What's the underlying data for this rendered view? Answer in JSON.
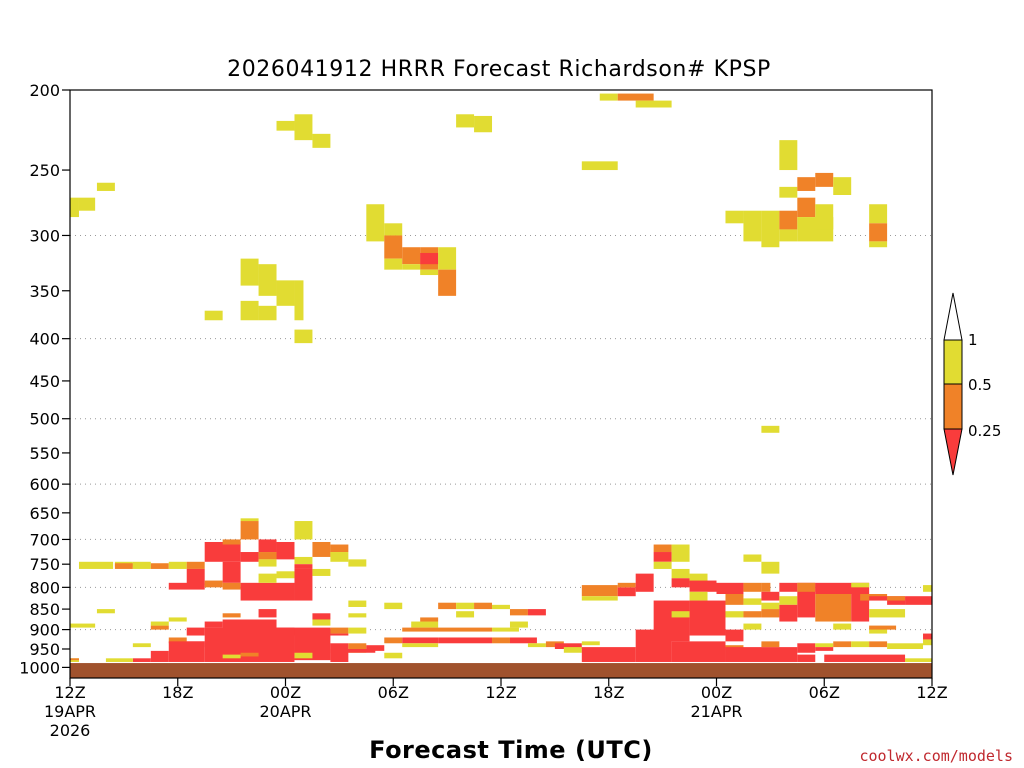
{
  "chart_data": {
    "type": "heatmap",
    "title": "2026041912 HRRR Forecast Richardson# KPSP",
    "xlabel": "Forecast Time (UTC)",
    "credit": "coolwx.com/models",
    "x_unit": "forecast hours from 12Z 19APR 2026",
    "xlim": [
      0,
      48
    ],
    "y_unit": "hPa",
    "ylim": [
      1000,
      200
    ],
    "y_scale": "log-pressure",
    "y_ticks": [
      200,
      250,
      300,
      350,
      400,
      450,
      500,
      550,
      600,
      650,
      700,
      750,
      800,
      850,
      900,
      950,
      1000
    ],
    "y_tick_labels": [
      "200",
      "250",
      "300",
      "350",
      "400",
      "450",
      "500",
      "550",
      "600",
      "650",
      "700",
      "750",
      "800",
      "850",
      "900",
      "950",
      "1000"
    ],
    "y_gridlines": [
      300,
      400,
      500,
      600,
      700,
      800,
      900
    ],
    "x_ticks": [
      {
        "hour": 0,
        "lines": [
          "12Z",
          "19APR",
          "2026"
        ]
      },
      {
        "hour": 6,
        "lines": [
          "18Z"
        ]
      },
      {
        "hour": 12,
        "lines": [
          "00Z",
          "20APR"
        ]
      },
      {
        "hour": 18,
        "lines": [
          "06Z"
        ]
      },
      {
        "hour": 24,
        "lines": [
          "12Z"
        ]
      },
      {
        "hour": 30,
        "lines": [
          "18Z"
        ]
      },
      {
        "hour": 36,
        "lines": [
          "00Z",
          "21APR"
        ]
      },
      {
        "hour": 42,
        "lines": [
          "06Z"
        ]
      },
      {
        "hour": 48,
        "lines": [
          "12Z"
        ]
      }
    ],
    "legend": {
      "placement": "right",
      "bins": [
        {
          "range": "< 0.25",
          "color": "#f93c3c"
        },
        {
          "range": "0.25 - 0.5",
          "color": "#f08228"
        },
        {
          "range": "0.5 - 1",
          "color": "#e1dc32"
        },
        {
          "range": "> 1",
          "color": "#ffffff"
        }
      ],
      "labels": [
        "1",
        "0.5",
        "0.25"
      ]
    },
    "ground_color": "#a0522d",
    "ground_top_hpa": 988,
    "colors": {
      "R": "#f93c3c",
      "O": "#f08228",
      "Y": "#e1dc32"
    },
    "cells": [
      [
        "Y",
        0,
        0.5,
        285,
        270
      ],
      [
        "Y",
        0.5,
        1.4,
        280,
        270
      ],
      [
        "Y",
        1.5,
        2.5,
        265,
        259
      ],
      [
        "Y",
        11.5,
        12.5,
        224,
        218
      ],
      [
        "Y",
        12.5,
        13.5,
        230,
        214
      ],
      [
        "Y",
        13.5,
        14.5,
        235,
        226
      ],
      [
        "Y",
        21.5,
        22.5,
        222,
        214
      ],
      [
        "Y",
        22.5,
        23.5,
        225,
        215
      ],
      [
        "Y",
        29.5,
        30.5,
        206,
        202
      ],
      [
        "O",
        30.5,
        32.5,
        206,
        202
      ],
      [
        "Y",
        31.5,
        33.5,
        210,
        206
      ],
      [
        "Y",
        28.5,
        30.5,
        250,
        244
      ],
      [
        "Y",
        39.5,
        40.5,
        250,
        230
      ],
      [
        "Y",
        39.5,
        40.5,
        270,
        262
      ],
      [
        "O",
        40.5,
        41.5,
        265,
        255
      ],
      [
        "O",
        41.5,
        42.5,
        262,
        252
      ],
      [
        "Y",
        42.5,
        43.5,
        268,
        255
      ],
      [
        "Y",
        36.5,
        37.5,
        290,
        280
      ],
      [
        "Y",
        37.5,
        38.5,
        305,
        280
      ],
      [
        "Y",
        38.5,
        39.5,
        310,
        280
      ],
      [
        "O",
        39.5,
        40.5,
        295,
        280
      ],
      [
        "Y",
        39.5,
        40.5,
        305,
        295
      ],
      [
        "O",
        40.5,
        41.5,
        285,
        270
      ],
      [
        "Y",
        40.5,
        42.5,
        305,
        285
      ],
      [
        "Y",
        41.5,
        42.5,
        295,
        275
      ],
      [
        "Y",
        44.5,
        45.5,
        290,
        275
      ],
      [
        "O",
        44.5,
        45.5,
        305,
        290
      ],
      [
        "Y",
        44.5,
        45.5,
        310,
        305
      ],
      [
        "Y",
        16.5,
        17.5,
        305,
        275
      ],
      [
        "Y",
        17.5,
        18.5,
        300,
        290
      ],
      [
        "O",
        17.5,
        18.5,
        320,
        300
      ],
      [
        "Y",
        17.5,
        18.5,
        330,
        320
      ],
      [
        "O",
        18.5,
        19.5,
        325,
        310
      ],
      [
        "Y",
        18.5,
        19.5,
        330,
        325
      ],
      [
        "O",
        19.5,
        20.5,
        330,
        310
      ],
      [
        "R",
        19.5,
        20.5,
        325,
        315
      ],
      [
        "Y",
        19.5,
        20.5,
        335,
        330
      ],
      [
        "Y",
        20.5,
        21.5,
        330,
        310
      ],
      [
        "O",
        20.5,
        21.5,
        355,
        330
      ],
      [
        "Y",
        9.5,
        10.5,
        345,
        320
      ],
      [
        "Y",
        10.5,
        11.5,
        355,
        325
      ],
      [
        "Y",
        11.5,
        12.5,
        365,
        340
      ],
      [
        "Y",
        12.5,
        13,
        380,
        340
      ],
      [
        "Y",
        9.5,
        10.5,
        380,
        360
      ],
      [
        "Y",
        10.5,
        11.5,
        380,
        365
      ],
      [
        "Y",
        7.5,
        8.5,
        380,
        370
      ],
      [
        "Y",
        12.5,
        13.5,
        405,
        390
      ],
      [
        "Y",
        38.5,
        39.5,
        520,
        510
      ],
      [
        "Y",
        0.5,
        2.4,
        760,
        745
      ],
      [
        "Y",
        2.5,
        3.5,
        755,
        745
      ],
      [
        "O",
        2.5,
        3.5,
        760,
        748
      ],
      [
        "Y",
        3.5,
        4.5,
        760,
        745
      ],
      [
        "O",
        4.5,
        5.5,
        760,
        748
      ],
      [
        "Y",
        5.5,
        6.5,
        760,
        745
      ],
      [
        "O",
        6.5,
        7.5,
        760,
        745
      ],
      [
        "R",
        7.5,
        9.5,
        745,
        705
      ],
      [
        "O",
        8.5,
        9.5,
        710,
        700
      ],
      [
        "O",
        9.5,
        10.5,
        700,
        665
      ],
      [
        "Y",
        9.5,
        10.5,
        665,
        660
      ],
      [
        "R",
        9.5,
        10.5,
        745,
        725
      ],
      [
        "R",
        10.5,
        11.5,
        725,
        700
      ],
      [
        "O",
        10.5,
        11.5,
        740,
        725
      ],
      [
        "Y",
        10.5,
        11.5,
        755,
        740
      ],
      [
        "R",
        11.5,
        12.5,
        740,
        705
      ],
      [
        "Y",
        12.5,
        13.5,
        700,
        665
      ],
      [
        "Y",
        12.5,
        13.5,
        750,
        735
      ],
      [
        "R",
        12.5,
        13.5,
        760,
        750
      ],
      [
        "O",
        13.5,
        14.5,
        735,
        705
      ],
      [
        "O",
        14.5,
        15.5,
        725,
        710
      ],
      [
        "Y",
        14.5,
        15.5,
        745,
        725
      ],
      [
        "Y",
        15.5,
        16.5,
        755,
        740
      ],
      [
        "R",
        5.5,
        7.5,
        805,
        790
      ],
      [
        "R",
        6.5,
        7.5,
        795,
        760
      ],
      [
        "O",
        7.5,
        8.5,
        800,
        785
      ],
      [
        "R",
        8.5,
        9.5,
        790,
        745
      ],
      [
        "O",
        8.5,
        9.5,
        805,
        790
      ],
      [
        "R",
        9.5,
        12.5,
        830,
        790
      ],
      [
        "R",
        12.5,
        13.5,
        830,
        760
      ],
      [
        "Y",
        10.5,
        11.5,
        790,
        770
      ],
      [
        "Y",
        11.5,
        12.5,
        780,
        765
      ],
      [
        "Y",
        13.5,
        14.5,
        775,
        760
      ],
      [
        "Y",
        15.5,
        16.5,
        845,
        830
      ],
      [
        "Y",
        15.5,
        16.5,
        870,
        860
      ],
      [
        "Y",
        0,
        1.4,
        895,
        885
      ],
      [
        "Y",
        1.5,
        2.5,
        860,
        850
      ],
      [
        "O",
        4.5,
        5.5,
        900,
        890
      ],
      [
        "Y",
        4.5,
        5.5,
        890,
        880
      ],
      [
        "Y",
        5.5,
        6.5,
        880,
        870
      ],
      [
        "R",
        6.5,
        7.5,
        915,
        895
      ],
      [
        "R",
        7.5,
        8.5,
        895,
        880
      ],
      [
        "O",
        8.5,
        9.5,
        870,
        860
      ],
      [
        "R",
        8.5,
        11.5,
        910,
        875
      ],
      [
        "R",
        10.5,
        11.5,
        870,
        850
      ],
      [
        "R",
        11.5,
        14.5,
        915,
        895
      ],
      [
        "R",
        13.5,
        14.5,
        875,
        860
      ],
      [
        "Y",
        13.5,
        14.5,
        890,
        875
      ],
      [
        "O",
        14.5,
        15.5,
        910,
        895
      ],
      [
        "R",
        14.5,
        15.5,
        915,
        910
      ],
      [
        "Y",
        15.5,
        16.5,
        910,
        895
      ],
      [
        "Y",
        17.5,
        18.5,
        850,
        835
      ],
      [
        "Y",
        19,
        20.5,
        895,
        880
      ],
      [
        "O",
        19.5,
        20.5,
        880,
        870
      ],
      [
        "O",
        20.5,
        21.5,
        850,
        835
      ],
      [
        "Y",
        21.5,
        22.5,
        850,
        835
      ],
      [
        "Y",
        21.5,
        22.5,
        870,
        855
      ],
      [
        "O",
        22.5,
        23.5,
        850,
        835
      ],
      [
        "Y",
        23.5,
        24.5,
        850,
        840
      ],
      [
        "O",
        24.5,
        25.5,
        865,
        850
      ],
      [
        "R",
        25.5,
        26.5,
        865,
        850
      ],
      [
        "Y",
        24.5,
        25.5,
        895,
        880
      ],
      [
        "O",
        18.5,
        23.5,
        905,
        895
      ],
      [
        "Y",
        23.5,
        25,
        905,
        895
      ],
      [
        "O",
        28.5,
        30.5,
        820,
        795
      ],
      [
        "Y",
        28.5,
        30.5,
        830,
        820
      ],
      [
        "R",
        30.5,
        31.5,
        820,
        800
      ],
      [
        "O",
        30.5,
        31.5,
        800,
        790
      ],
      [
        "R",
        31.5,
        32.5,
        810,
        770
      ],
      [
        "O",
        32.5,
        33.5,
        725,
        710
      ],
      [
        "R",
        32.5,
        33.5,
        745,
        725
      ],
      [
        "Y",
        32.5,
        33.5,
        760,
        745
      ],
      [
        "Y",
        33.5,
        34.5,
        745,
        710
      ],
      [
        "Y",
        33.5,
        34.5,
        780,
        760
      ],
      [
        "R",
        33.5,
        34.5,
        800,
        780
      ],
      [
        "Y",
        34.5,
        35.5,
        790,
        770
      ],
      [
        "R",
        34.5,
        36,
        810,
        785
      ],
      [
        "Y",
        34.5,
        35.5,
        830,
        810
      ],
      [
        "R",
        32.5,
        34.5,
        930,
        830
      ],
      [
        "Y",
        33.5,
        34.5,
        870,
        855
      ],
      [
        "R",
        34.5,
        36.5,
        915,
        830
      ],
      [
        "R",
        36,
        37.5,
        815,
        790
      ],
      [
        "O",
        36.5,
        37.5,
        840,
        815
      ],
      [
        "Y",
        36.5,
        37.5,
        870,
        855
      ],
      [
        "R",
        36.5,
        37.5,
        930,
        900
      ],
      [
        "O",
        37.5,
        38.5,
        810,
        790
      ],
      [
        "Y",
        37.5,
        38.5,
        840,
        825
      ],
      [
        "O",
        37.5,
        38.5,
        870,
        855
      ],
      [
        "Y",
        37.5,
        38.5,
        900,
        885
      ],
      [
        "O",
        38.5,
        39,
        810,
        790
      ],
      [
        "R",
        38.5,
        39.5,
        830,
        810
      ],
      [
        "Y",
        38.5,
        39.5,
        850,
        835
      ],
      [
        "O",
        38.5,
        39.5,
        870,
        850
      ],
      [
        "Y",
        37.5,
        38.5,
        745,
        730
      ],
      [
        "Y",
        38.5,
        39.5,
        770,
        745
      ],
      [
        "R",
        39.5,
        40.5,
        810,
        790
      ],
      [
        "Y",
        39.5,
        40.5,
        840,
        820
      ],
      [
        "R",
        39.5,
        40.5,
        880,
        840
      ],
      [
        "R",
        40.5,
        41.5,
        870,
        790
      ],
      [
        "O",
        40.5,
        41.5,
        810,
        790
      ],
      [
        "R",
        41.5,
        44.5,
        815,
        790
      ],
      [
        "O",
        41.5,
        43.5,
        880,
        815
      ],
      [
        "Y",
        43.5,
        44.5,
        800,
        790
      ],
      [
        "R",
        43.5,
        44.5,
        880,
        815
      ],
      [
        "O",
        44,
        45.5,
        830,
        815
      ],
      [
        "R",
        44.5,
        45.5,
        830,
        820
      ],
      [
        "Y",
        44.5,
        46.5,
        870,
        850
      ],
      [
        "R",
        45.5,
        46.5,
        840,
        820
      ],
      [
        "O",
        45.5,
        46.5,
        830,
        820
      ],
      [
        "R",
        46.5,
        48,
        840,
        820
      ],
      [
        "Y",
        47.5,
        48,
        810,
        795
      ],
      [
        "Y",
        42.5,
        43.5,
        900,
        885
      ],
      [
        "Y",
        44.5,
        45.5,
        910,
        895
      ],
      [
        "O",
        44.5,
        46,
        900,
        890
      ],
      [
        "R",
        3.5,
        4.5,
        985,
        975
      ],
      [
        "R",
        4.5,
        5.5,
        985,
        955
      ],
      [
        "O",
        5.5,
        6.5,
        935,
        920
      ],
      [
        "R",
        5.5,
        7.5,
        985,
        930
      ],
      [
        "R",
        7.5,
        12.5,
        985,
        895
      ],
      [
        "O",
        9.5,
        10.5,
        970,
        960
      ],
      [
        "Y",
        8.5,
        9.5,
        975,
        965
      ],
      [
        "R",
        12.5,
        14.5,
        980,
        900
      ],
      [
        "Y",
        12.5,
        13.5,
        975,
        960
      ],
      [
        "R",
        14.5,
        15.5,
        985,
        935
      ],
      [
        "O",
        15.5,
        16.5,
        950,
        935
      ],
      [
        "Y",
        15.5,
        16.5,
        960,
        950
      ],
      [
        "R",
        16.5,
        17.5,
        955,
        940
      ],
      [
        "Y",
        17.5,
        18.5,
        975,
        960
      ],
      [
        "O",
        17.5,
        18.5,
        935,
        920
      ],
      [
        "R",
        18.5,
        20.5,
        935,
        920
      ],
      [
        "Y",
        18.5,
        20.5,
        945,
        935
      ],
      [
        "R",
        20.5,
        23.5,
        935,
        920
      ],
      [
        "O",
        23.5,
        24.5,
        935,
        920
      ],
      [
        "R",
        24.5,
        26,
        935,
        920
      ],
      [
        "Y",
        25.5,
        26.5,
        945,
        935
      ],
      [
        "O",
        26.5,
        27.5,
        945,
        930
      ],
      [
        "R",
        27,
        28.5,
        950,
        935
      ],
      [
        "Y",
        27.5,
        28.5,
        960,
        945
      ],
      [
        "Y",
        28.5,
        29.5,
        940,
        930
      ],
      [
        "R",
        28.5,
        31.5,
        985,
        945
      ],
      [
        "R",
        31.5,
        33.5,
        985,
        900
      ],
      [
        "R",
        33.5,
        36.5,
        985,
        930
      ],
      [
        "O",
        36.5,
        37.5,
        955,
        940
      ],
      [
        "R",
        36.5,
        40.5,
        985,
        945
      ],
      [
        "O",
        38.5,
        39.5,
        945,
        930
      ],
      [
        "R",
        40.5,
        41.5,
        960,
        935
      ],
      [
        "Y",
        41.5,
        42.5,
        945,
        935
      ],
      [
        "R",
        41.5,
        42.5,
        955,
        945
      ],
      [
        "O",
        42.5,
        43.5,
        945,
        930
      ],
      [
        "Y",
        43.5,
        44.5,
        945,
        930
      ],
      [
        "O",
        44.5,
        45.5,
        945,
        930
      ],
      [
        "Y",
        45.5,
        47.5,
        950,
        935
      ],
      [
        "Y",
        47.5,
        48,
        940,
        925
      ],
      [
        "R",
        47.5,
        48,
        925,
        910
      ],
      [
        "Y",
        46.5,
        48,
        985,
        975
      ],
      [
        "Y",
        0,
        0.5,
        985,
        975
      ],
      [
        "O",
        0,
        0.5,
        980,
        975
      ],
      [
        "Y",
        2,
        3.5,
        985,
        975
      ],
      [
        "Y",
        3.5,
        4.5,
        945,
        935
      ],
      [
        "R",
        6.5,
        7.5,
        945,
        930
      ],
      [
        "R",
        14.5,
        17,
        960,
        950
      ],
      [
        "R",
        40.5,
        41.5,
        985,
        965
      ],
      [
        "R",
        42,
        46.5,
        985,
        965
      ]
    ]
  }
}
